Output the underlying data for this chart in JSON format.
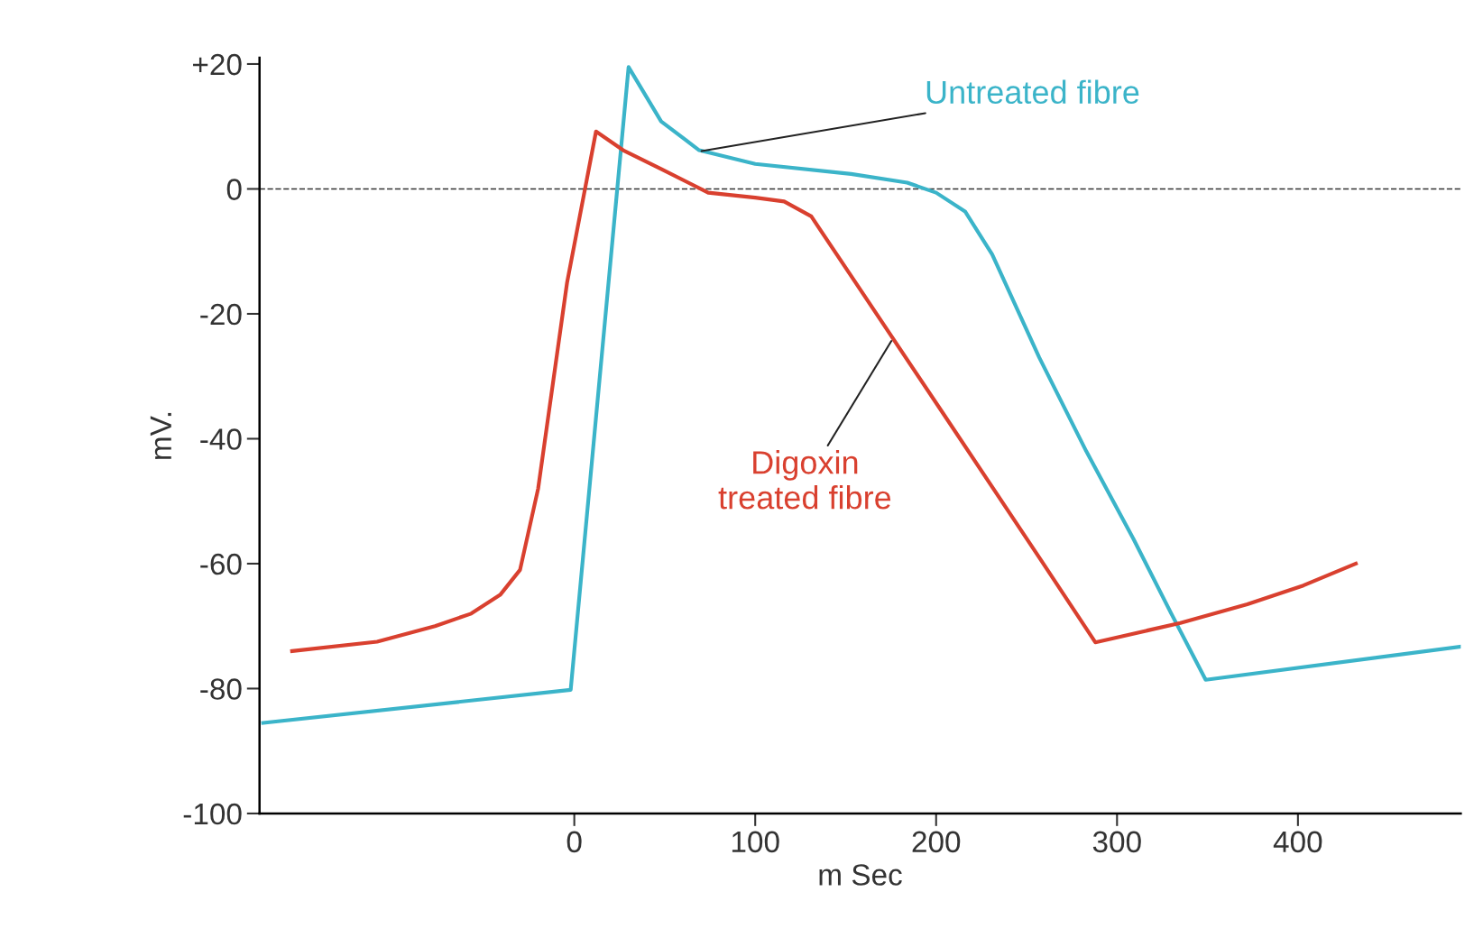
{
  "chart_data": {
    "type": "line",
    "xlabel": "m Sec",
    "ylabel": "mV.",
    "xlim": [
      -174,
      490
    ],
    "ylim": [
      -100,
      21
    ],
    "xticks": [
      0,
      100,
      200,
      300,
      400
    ],
    "yticks": [
      {
        "value": 20,
        "label": "+20"
      },
      0,
      -20,
      -40,
      -60,
      -80,
      -100
    ],
    "grid": false,
    "legend": false,
    "marker": "none",
    "line_style": "solid",
    "ref_lines": [
      {
        "axis": "y",
        "value": 0,
        "color": "#333333",
        "line_style": "dashed"
      }
    ],
    "series": [
      {
        "color": "#3bb4c9",
        "x": [
          -172,
          -2,
          30,
          48,
          69,
          100,
          153,
          184,
          200,
          216,
          231,
          257,
          283,
          309,
          330,
          349,
          490
        ],
        "values": [
          -85.5,
          -80.2,
          19.5,
          10.8,
          6.2,
          4,
          2.4,
          1,
          -0.6,
          -3.6,
          -10.5,
          -27,
          -42,
          -56,
          -68,
          -78.6,
          -73.3
        ]
      },
      {
        "color": "#d9402f",
        "x": [
          -156,
          -109,
          -77,
          -57,
          -41,
          -30,
          -20,
          -4,
          12,
          27,
          48,
          74,
          100,
          116,
          131,
          152,
          204,
          257,
          288,
          335,
          372,
          403,
          432
        ],
        "values": [
          -74,
          -72.5,
          -70,
          -68,
          -65,
          -61,
          -48,
          -15,
          9.2,
          6.2,
          3.2,
          -0.6,
          -1.4,
          -2,
          -4.4,
          -13.5,
          -36,
          -59,
          -72.6,
          -69.5,
          -66.5,
          -63.5,
          -60
        ]
      }
    ],
    "annotations": [
      {
        "text": "Untreated fibre",
        "x": 69,
        "y": 6
      },
      {
        "text": "Digoxin\ntreated fibre",
        "x": 176,
        "y": -24
      }
    ]
  }
}
